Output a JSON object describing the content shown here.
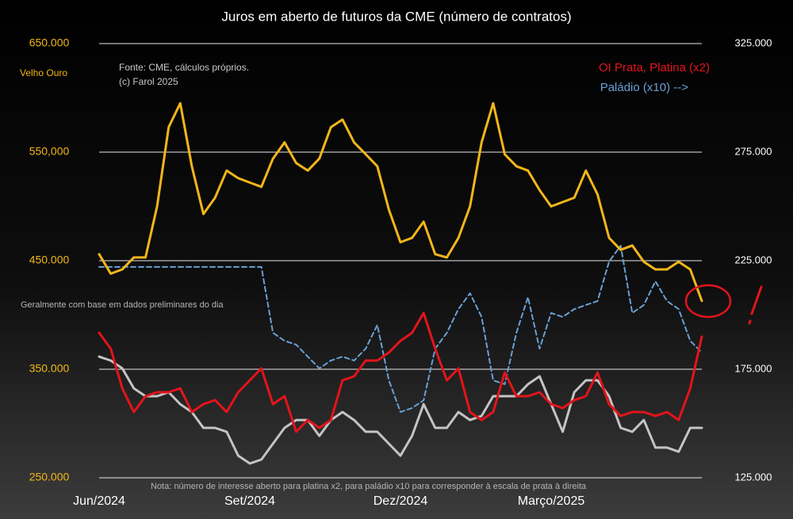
{
  "chart_data": {
    "type": "line",
    "title": "Juros em aberto de futuros da CME (número de contratos)",
    "annotations": [
      "Fonte: CME, cálculos próprios.",
      "(c) Farol 2025",
      "Geralmente com base em dados preliminares do dia",
      "Nota: número de interesse aberto para platina x2, para paládio x10 para corresponder à escala de prata à direita"
    ],
    "categories": [
      "Jun/2024",
      null,
      null,
      null,
      null,
      null,
      null,
      null,
      null,
      null,
      null,
      null,
      null,
      "Set/2024",
      null,
      null,
      null,
      null,
      null,
      null,
      null,
      null,
      null,
      null,
      null,
      null,
      "Dez/2024",
      null,
      null,
      null,
      null,
      null,
      null,
      null,
      null,
      null,
      null,
      null,
      null,
      "Março/2025",
      null,
      null,
      null,
      null,
      null,
      null,
      null,
      null,
      null,
      null,
      null,
      null,
      null
    ],
    "ylim": [
      250000,
      650000
    ],
    "yticks": [
      {
        "value": 250000,
        "label": "250.000"
      },
      {
        "value": 350000,
        "label": "350.000"
      },
      {
        "value": 450000,
        "label": "450.000"
      },
      {
        "value": 550000,
        "label": "550,000"
      },
      {
        "value": 650000,
        "label": "650.000"
      }
    ],
    "y2lim": [
      125000,
      325000
    ],
    "y2ticks": [
      {
        "value": 125000,
        "label": "125.000"
      },
      {
        "value": 175000,
        "label": "175.000"
      },
      {
        "value": 225000,
        "label": "225.000"
      },
      {
        "value": 275000,
        "label": "275.000"
      },
      {
        "value": 325000,
        "label": "325.000"
      }
    ],
    "grid": true,
    "series": [
      {
        "name": "Velho Ouro",
        "color": "#f2b619",
        "values": [
          456000,
          438000,
          442000,
          453000,
          453000,
          500000,
          573000,
          595000,
          537000,
          493000,
          508000,
          533000,
          526000,
          522000,
          518000,
          544000,
          559000,
          540000,
          533000,
          544000,
          573000,
          580000,
          559000,
          548000,
          537000,
          497000,
          467000,
          471000,
          486000,
          456000,
          453000,
          471000,
          500000,
          559000,
          595000,
          548000,
          537000,
          533000,
          515000,
          500000,
          504000,
          508000,
          533000,
          511000,
          471000,
          460000,
          464000,
          449000,
          442000,
          442000,
          449000,
          442000,
          413000
        ]
      },
      {
        "name": "OI Prata, Platina (x2)",
        "color": "#e3141b",
        "axis": "y2",
        "values": [
          191800,
          184500,
          166200,
          155300,
          162600,
          164400,
          164400,
          166200,
          155300,
          158900,
          160800,
          155300,
          164400,
          169900,
          175400,
          158900,
          162600,
          146200,
          151600,
          148000,
          151600,
          169900,
          171700,
          179000,
          179000,
          182700,
          188100,
          191800,
          200900,
          184500,
          169900,
          175400,
          155300,
          151600,
          155300,
          173500,
          162600,
          162600,
          164400,
          158900,
          157100,
          160800,
          162600,
          173500,
          158900,
          153500,
          155300,
          155300,
          153500,
          155300,
          151600,
          166200,
          190000
        ]
      },
      {
        "color": "#c4c4c4",
        "axis": "y2",
        "values": [
          180800,
          179000,
          175400,
          166200,
          162600,
          162600,
          164400,
          158900,
          155300,
          148000,
          148000,
          146200,
          135200,
          131600,
          133400,
          140700,
          148000,
          151600,
          151600,
          144300,
          151600,
          155300,
          151600,
          146200,
          146200,
          140700,
          135200,
          144300,
          158900,
          148000,
          148000,
          155300,
          151600,
          153500,
          162600,
          162600,
          162600,
          168100,
          171700,
          158900,
          146200,
          164400,
          169900,
          169900,
          162600,
          148000,
          146200,
          151600,
          138900,
          138900,
          137000,
          148000,
          148000
        ]
      },
      {
        "name": "Paládio (x10) -->",
        "color": "#6a9fd4",
        "axis": "y2",
        "dashed": true,
        "values": [
          222100,
          222100,
          222100,
          222100,
          222100,
          222100,
          222100,
          222100,
          222100,
          222100,
          222100,
          222100,
          222100,
          222100,
          222100,
          191800,
          188100,
          186300,
          180800,
          175400,
          179000,
          180800,
          179000,
          184500,
          195400,
          169900,
          155300,
          157100,
          160700,
          184500,
          191800,
          202700,
          210000,
          199100,
          169900,
          168100,
          191800,
          208200,
          184500,
          200900,
          199100,
          202700,
          204600,
          206400,
          224600,
          231900,
          200900,
          204600,
          215500,
          206400,
          202700,
          188100,
          182700
        ]
      }
    ]
  }
}
